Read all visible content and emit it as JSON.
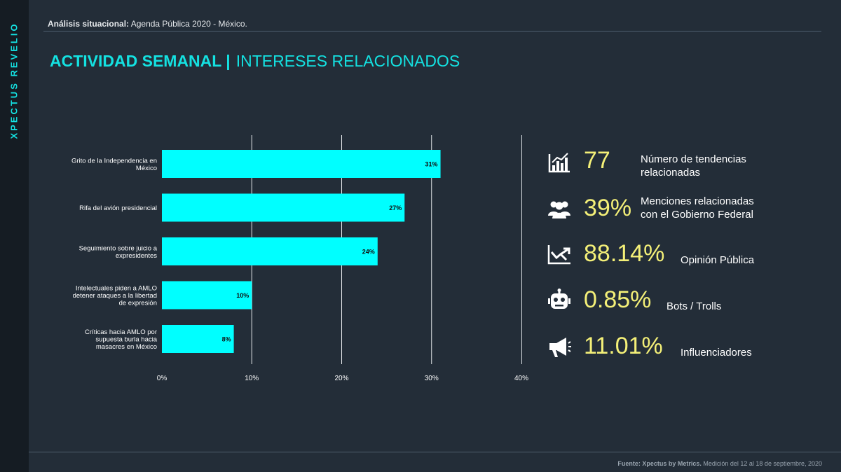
{
  "brand": "XPECTUS REVELIO",
  "header": {
    "label": "Análisis situacional:",
    "text": " Agenda Pública 2020 - México."
  },
  "title": {
    "main": "ACTIVIDAD SEMANAL |",
    "sub": "INTERESES RELACIONADOS"
  },
  "chart_data": {
    "type": "bar",
    "orientation": "horizontal",
    "categories": [
      [
        "Grito de la Independencia en",
        "México"
      ],
      [
        "Rifa del avión presidencial"
      ],
      [
        "Seguimiento sobre juicio a",
        "expresidentes"
      ],
      [
        "Intelectuales piden a AMLO",
        "detener ataques a la libertad",
        "de expresión"
      ],
      [
        "Críticas hacia AMLO por",
        "supuesta burla hacia",
        "masacres en México"
      ]
    ],
    "values": [
      31,
      27,
      24,
      10,
      8
    ],
    "data_labels": [
      "31%",
      "27%",
      "24%",
      "10%",
      "8%"
    ],
    "xlim": [
      0,
      40
    ],
    "xticks": [
      "0%",
      "10%",
      "20%",
      "30%",
      "40%"
    ],
    "grid": true,
    "bar_color": "#00ffff",
    "grid_color": "#e6e9ec"
  },
  "stats": [
    {
      "icon": "bar-chart-icon",
      "value": "77",
      "label": [
        "Número de tendencias",
        "relacionadas"
      ]
    },
    {
      "icon": "users-icon",
      "value": "39%",
      "label": [
        "Menciones relacionadas",
        "con el Gobierno Federal"
      ]
    },
    {
      "icon": "trend-chart-icon",
      "value": "88.14%",
      "label": [
        "Opinión Pública"
      ]
    },
    {
      "icon": "robot-icon",
      "value": "0.85%",
      "label": [
        "Bots / Trolls"
      ]
    },
    {
      "icon": "megaphone-icon",
      "value": "11.01%",
      "label": [
        "Influenciadores"
      ]
    }
  ],
  "colors": {
    "accent": "#14e1e1",
    "value": "#f4f078",
    "background": "#232d38"
  },
  "footer": {
    "source": "Fuente: Xpectus by Metrics.",
    "text": " Medición del 12 al 18 de septiembre, 2020"
  }
}
